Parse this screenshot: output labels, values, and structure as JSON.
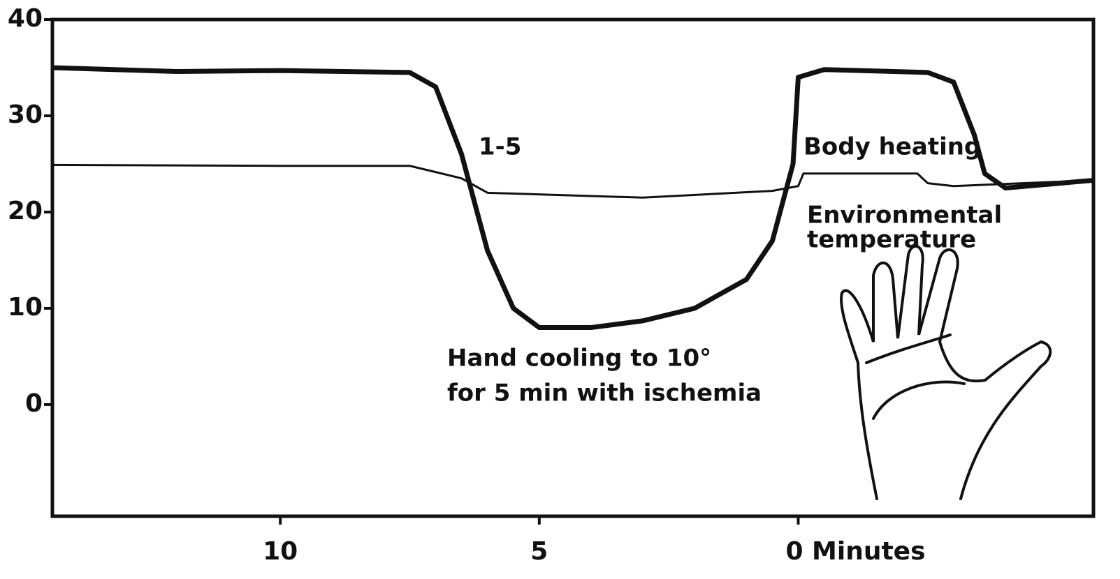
{
  "chart_data": {
    "type": "line",
    "x_axis_label": null,
    "xlim": [
      14.4,
      -5.7
    ],
    "xticks": [
      10,
      5,
      {
        "value": 0,
        "label": "0 Minutes"
      }
    ],
    "ylim": [
      -11.6,
      40
    ],
    "yticks": [
      0,
      10,
      20,
      30,
      40
    ],
    "grid": false,
    "series": [
      {
        "name": "1-5",
        "color": "#111111",
        "width": 7,
        "x": [
          14.4,
          12,
          10,
          7.5,
          7,
          6.5,
          6,
          5.5,
          5,
          4,
          3,
          2,
          1,
          0.5,
          0.1,
          0,
          -0.5,
          -2.5,
          -3,
          -3.4,
          -3.6,
          -4,
          -5.7
        ],
        "values": [
          35,
          34.6,
          34.7,
          34.5,
          33,
          26,
          16,
          10,
          8,
          8,
          8.7,
          10,
          13,
          17,
          25,
          34,
          34.8,
          34.5,
          33.5,
          28,
          24,
          22.5,
          23.3
        ]
      },
      {
        "color": "#111111",
        "width": 3,
        "x": [
          14.4,
          10,
          7.5,
          6.5,
          6,
          3,
          0.5,
          0,
          -0.1,
          -2.3,
          -2.5,
          -3,
          -5.7
        ],
        "values": [
          24.9,
          24.8,
          24.8,
          23.5,
          22,
          21.5,
          22.2,
          22.7,
          24,
          24,
          23,
          22.7,
          23.3
        ]
      }
    ],
    "annotations": [
      "Body heating",
      "Environmental",
      "temperature",
      "Hand cooling to 10°",
      "for 5 min with ischemia"
    ]
  }
}
